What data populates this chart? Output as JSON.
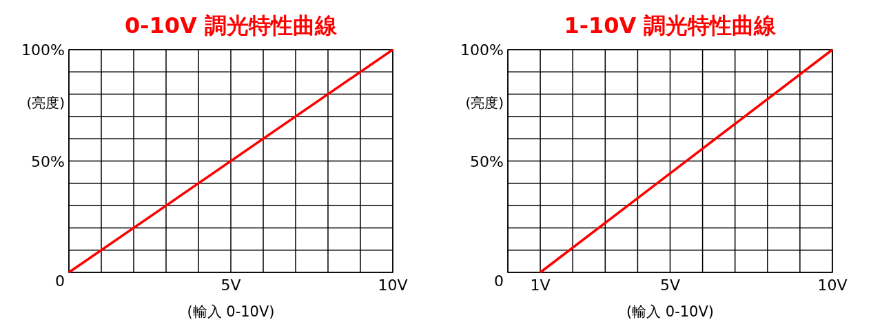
{
  "chart_data": [
    {
      "type": "line",
      "title": "0-10V  調光特性曲線",
      "xlabel": "(輸入 0-10V)",
      "ylabel": "(亮度)",
      "x": [
        0,
        10
      ],
      "values": [
        0,
        100
      ],
      "color": "#ff0000",
      "xlim": [
        0,
        10
      ],
      "ylim": [
        0,
        100
      ],
      "xticks": [
        {
          "value": 0,
          "label": null
        },
        {
          "value": 1,
          "label": null
        },
        {
          "value": 2,
          "label": null
        },
        {
          "value": 3,
          "label": null
        },
        {
          "value": 4,
          "label": null
        },
        {
          "value": 5,
          "label": "5V"
        },
        {
          "value": 6,
          "label": null
        },
        {
          "value": 7,
          "label": null
        },
        {
          "value": 8,
          "label": null
        },
        {
          "value": 9,
          "label": null
        },
        {
          "value": 10,
          "label": "10V"
        }
      ],
      "yticks": [
        0,
        {
          "value": 10,
          "label": null
        },
        {
          "value": 20,
          "label": null
        },
        {
          "value": 30,
          "label": null
        },
        {
          "value": 40,
          "label": null
        },
        {
          "value": 50,
          "label": "50%"
        },
        {
          "value": 60,
          "label": null
        },
        {
          "value": 70,
          "label": null
        },
        {
          "value": 80,
          "label": null
        },
        {
          "value": 90,
          "label": null
        },
        {
          "value": 100,
          "label": "100%"
        }
      ],
      "grid": true
    },
    {
      "type": "line",
      "title": "1-10V  調光特性曲線",
      "xlabel": "(輸入 0-10V)",
      "ylabel": "(亮度)",
      "x": [
        1,
        10
      ],
      "values": [
        0,
        100
      ],
      "color": "#ff0000",
      "xlim": [
        0,
        10
      ],
      "ylim": [
        0,
        100
      ],
      "xticks": [
        {
          "value": 0,
          "label": null
        },
        {
          "value": 1,
          "label": "1V"
        },
        {
          "value": 2,
          "label": null
        },
        {
          "value": 3,
          "label": null
        },
        {
          "value": 4,
          "label": null
        },
        {
          "value": 5,
          "label": "5V"
        },
        {
          "value": 6,
          "label": null
        },
        {
          "value": 7,
          "label": null
        },
        {
          "value": 8,
          "label": null
        },
        {
          "value": 9,
          "label": null
        },
        {
          "value": 10,
          "label": "10V"
        }
      ],
      "yticks": [
        0,
        {
          "value": 10,
          "label": null
        },
        {
          "value": 20,
          "label": null
        },
        {
          "value": 30,
          "label": null
        },
        {
          "value": 40,
          "label": null
        },
        {
          "value": 50,
          "label": "50%"
        },
        {
          "value": 60,
          "label": null
        },
        {
          "value": 70,
          "label": null
        },
        {
          "value": 80,
          "label": null
        },
        {
          "value": 90,
          "label": null
        },
        {
          "value": 100,
          "label": "100%"
        }
      ],
      "grid": true
    }
  ]
}
